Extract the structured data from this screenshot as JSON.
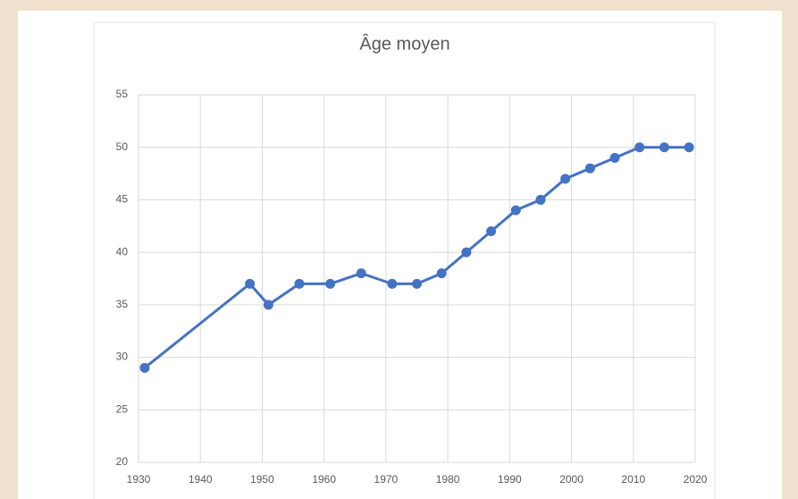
{
  "chart_data": {
    "type": "line",
    "title": "Âge moyen",
    "x": [
      1931,
      1948,
      1951,
      1956,
      1961,
      1966,
      1971,
      1975,
      1979,
      1983,
      1987,
      1991,
      1995,
      1999,
      2003,
      2007,
      2011,
      2015,
      2019
    ],
    "series": [
      {
        "name": "Âge moyen",
        "color": "#4472c4",
        "values": [
          29,
          37,
          35,
          37,
          37,
          38,
          37,
          37,
          38,
          40,
          42,
          44,
          45,
          47,
          48,
          49,
          50,
          50,
          50
        ]
      }
    ],
    "xlim": [
      1930,
      2020
    ],
    "xticks": [
      1930,
      1940,
      1950,
      1960,
      1970,
      1980,
      1990,
      2000,
      2010,
      2020
    ],
    "ylim": [
      20,
      55
    ],
    "yticks": [
      20,
      25,
      30,
      35,
      40,
      45,
      50,
      55
    ],
    "grid": true
  }
}
